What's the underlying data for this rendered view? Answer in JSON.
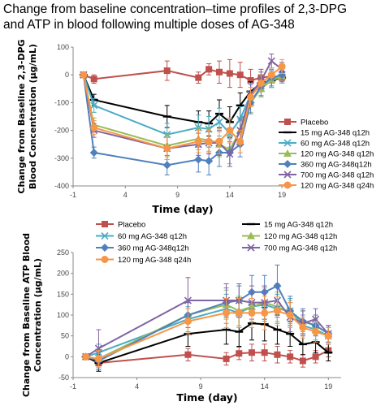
{
  "figure": {
    "title_line1": "Change from baseline concentration–time profiles of 2,3-DPG",
    "title_line2": "and ATP in blood following multiple doses of AG-348"
  },
  "chart_data": [
    {
      "id": "dpg",
      "type": "line",
      "title": "",
      "xlabel": "Time (day)",
      "ylabel": [
        "Change from Baseline  2,3-DPG",
        "Blood Concentration (µg/mL)"
      ],
      "xlim": [
        -1,
        20
      ],
      "ylim": [
        -400,
        100
      ],
      "xticks": [
        -1,
        4,
        9,
        14,
        19
      ],
      "yticks": [
        100,
        0,
        -100,
        -200,
        -300,
        -400
      ],
      "ytick_labels": [
        "100",
        "0",
        "-100",
        "-200",
        "-300",
        "-400"
      ],
      "legend_position": "right",
      "series": [
        {
          "name": "Placebo",
          "color": "#c0504d",
          "marker": "square",
          "x": [
            0,
            1,
            8,
            11,
            12,
            13,
            14,
            15,
            16,
            17,
            18,
            19
          ],
          "y": [
            0,
            -15,
            15,
            -10,
            20,
            10,
            5,
            0,
            -20,
            -10,
            -5,
            -10
          ],
          "err": [
            0,
            15,
            35,
            20,
            20,
            40,
            50,
            45,
            40,
            30,
            20,
            20
          ]
        },
        {
          "name": "15 mg AG-348 q12h",
          "color": "#000000",
          "marker": "dash",
          "x": [
            0,
            1,
            8,
            11,
            12,
            13,
            14,
            15,
            16,
            17,
            18,
            19
          ],
          "y": [
            0,
            -90,
            -150,
            -170,
            -175,
            -140,
            -170,
            -110,
            -60,
            -30,
            -20,
            -10
          ],
          "err": [
            0,
            20,
            40,
            40,
            45,
            50,
            55,
            45,
            35,
            30,
            25,
            20
          ]
        },
        {
          "name": "60 mg AG-348 q12h",
          "color": "#4bacc6",
          "marker": "x",
          "x": [
            0,
            1,
            8,
            11,
            12,
            13,
            14,
            15,
            16,
            17,
            18,
            19
          ],
          "y": [
            0,
            -110,
            -215,
            -190,
            -195,
            -170,
            -210,
            -160,
            -70,
            -40,
            -15,
            0
          ],
          "err": [
            0,
            25,
            40,
            45,
            45,
            50,
            50,
            45,
            40,
            35,
            30,
            25
          ]
        },
        {
          "name": "120 mg AG-348 q12h",
          "color": "#9bbb59",
          "marker": "triangle",
          "x": [
            0,
            1,
            8,
            11,
            12,
            13,
            14,
            15,
            16,
            17,
            18,
            19
          ],
          "y": [
            0,
            -180,
            -255,
            -230,
            -235,
            -250,
            -270,
            -200,
            -100,
            -50,
            -20,
            -5
          ],
          "err": [
            0,
            25,
            40,
            40,
            40,
            45,
            50,
            40,
            35,
            30,
            25,
            25
          ]
        },
        {
          "name": "360 mg AG-348q12h",
          "color": "#4f81bd",
          "marker": "diamond",
          "x": [
            0,
            1,
            8,
            11,
            12,
            13,
            14,
            15,
            16,
            17,
            18,
            19
          ],
          "y": [
            0,
            -280,
            -325,
            -305,
            -310,
            -280,
            -280,
            -250,
            -100,
            -40,
            -10,
            0
          ],
          "err": [
            0,
            20,
            35,
            45,
            50,
            50,
            50,
            45,
            40,
            35,
            30,
            25
          ]
        },
        {
          "name": "700 mg AG-348 q12h",
          "color": "#8064a2",
          "marker": "x",
          "x": [
            0,
            1,
            8,
            11,
            12,
            13,
            14,
            15,
            16,
            17,
            18,
            19
          ],
          "y": [
            0,
            -200,
            -265,
            -250,
            -245,
            -245,
            -285,
            -200,
            -70,
            -20,
            50,
            20
          ],
          "err": [
            0,
            25,
            40,
            40,
            40,
            45,
            45,
            40,
            35,
            30,
            25,
            25
          ]
        },
        {
          "name": "120 mg AG-348 q24h",
          "color": "#f79646",
          "marker": "circle",
          "x": [
            0,
            1,
            8,
            11,
            12,
            13,
            14,
            15,
            16,
            17,
            18,
            19
          ],
          "y": [
            0,
            -190,
            -265,
            -240,
            -240,
            -240,
            -200,
            -240,
            -80,
            -30,
            0,
            30
          ],
          "err": [
            0,
            25,
            40,
            40,
            40,
            45,
            45,
            40,
            35,
            30,
            25,
            25
          ]
        }
      ]
    },
    {
      "id": "atp",
      "type": "line",
      "title": "",
      "xlabel": "Time (day)",
      "ylabel": [
        "Change from Baseline ATP Blood",
        "Concentration (µg/mL)"
      ],
      "xlim": [
        -1,
        20
      ],
      "ylim": [
        -50,
        250
      ],
      "xticks": [
        -1,
        4,
        9,
        14,
        19
      ],
      "yticks": [
        250,
        200,
        150,
        100,
        50,
        0,
        -50
      ],
      "ytick_labels": [
        "250",
        "200",
        "150",
        "100",
        "50",
        "0",
        "-50"
      ],
      "legend_position": "top",
      "series": [
        {
          "name": "Placebo",
          "color": "#c0504d",
          "marker": "square",
          "x": [
            0,
            1,
            8,
            11,
            12,
            13,
            14,
            15,
            16,
            17,
            18,
            19
          ],
          "y": [
            0,
            -15,
            5,
            -5,
            8,
            10,
            10,
            5,
            0,
            -10,
            0,
            15
          ],
          "err": [
            0,
            15,
            15,
            15,
            15,
            20,
            20,
            20,
            15,
            15,
            15,
            15
          ]
        },
        {
          "name": "15 mg AG-348 q12h",
          "color": "#000000",
          "marker": "dash",
          "x": [
            0,
            1,
            8,
            11,
            12,
            13,
            14,
            15,
            16,
            17,
            18,
            19
          ],
          "y": [
            0,
            -15,
            55,
            65,
            60,
            80,
            78,
            65,
            55,
            30,
            35,
            10
          ],
          "err": [
            0,
            20,
            30,
            35,
            35,
            40,
            40,
            35,
            30,
            25,
            25,
            20
          ]
        },
        {
          "name": "60 mg AG-348 q12h",
          "color": "#4bacc6",
          "marker": "x",
          "x": [
            0,
            1,
            8,
            11,
            12,
            13,
            14,
            15,
            16,
            17,
            18,
            19
          ],
          "y": [
            0,
            10,
            90,
            115,
            105,
            120,
            125,
            115,
            110,
            75,
            65,
            50
          ],
          "err": [
            0,
            20,
            30,
            35,
            35,
            35,
            40,
            35,
            30,
            25,
            25,
            20
          ]
        },
        {
          "name": "120 mg AG-348 q12h",
          "color": "#9bbb59",
          "marker": "triangle",
          "x": [
            0,
            1,
            8,
            11,
            12,
            13,
            14,
            15,
            16,
            17,
            18,
            19
          ],
          "y": [
            0,
            -5,
            100,
            125,
            110,
            120,
            130,
            120,
            105,
            85,
            75,
            55
          ],
          "err": [
            0,
            20,
            30,
            35,
            35,
            35,
            40,
            35,
            30,
            25,
            25,
            20
          ]
        },
        {
          "name": "360 mg AG-348q12h",
          "color": "#4f81bd",
          "marker": "diamond",
          "x": [
            0,
            1,
            8,
            11,
            12,
            13,
            14,
            15,
            16,
            17,
            18,
            19
          ],
          "y": [
            0,
            -10,
            100,
            130,
            135,
            155,
            155,
            170,
            110,
            85,
            75,
            55
          ],
          "err": [
            0,
            20,
            30,
            35,
            35,
            40,
            40,
            50,
            35,
            30,
            25,
            20
          ]
        },
        {
          "name": "700 mg AG-348 q12h",
          "color": "#8064a2",
          "marker": "x",
          "x": [
            0,
            1,
            8,
            11,
            12,
            13,
            14,
            15,
            16,
            17,
            18,
            19
          ],
          "y": [
            0,
            20,
            135,
            135,
            135,
            130,
            130,
            135,
            95,
            80,
            90,
            55
          ],
          "err": [
            0,
            45,
            55,
            40,
            40,
            40,
            40,
            40,
            35,
            30,
            25,
            20
          ]
        },
        {
          "name": "120 mg AG-348 q24h",
          "color": "#f79646",
          "marker": "circle",
          "x": [
            0,
            1,
            8,
            11,
            12,
            13,
            14,
            15,
            16,
            17,
            18,
            19
          ],
          "y": [
            0,
            -5,
            85,
            105,
            105,
            105,
            105,
            110,
            100,
            70,
            60,
            50
          ],
          "err": [
            0,
            20,
            30,
            35,
            35,
            35,
            40,
            35,
            30,
            25,
            25,
            20
          ]
        }
      ]
    }
  ]
}
